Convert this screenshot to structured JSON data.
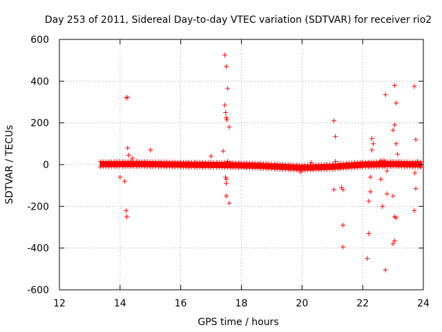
{
  "chart_data": {
    "type": "scatter",
    "title": "Day 253 of 2011, Sidereal Day-to-day VTEC variation (SDTVAR) for receiver rio2",
    "xlabel": "GPS time / hours",
    "ylabel": "SDTVAR / TECUs",
    "xlim": [
      12,
      24
    ],
    "ylim": [
      -600,
      600
    ],
    "xticks": [
      12,
      14,
      16,
      18,
      20,
      22,
      24
    ],
    "yticks": [
      -600,
      -400,
      -200,
      0,
      200,
      400,
      600
    ],
    "grid": true,
    "marker": "+",
    "series": [
      {
        "name": "SDTVAR",
        "color": "#ff0000",
        "band": {
          "x_start": 13.35,
          "x_end": 23.95,
          "center": [
            [
              13.35,
              2
            ],
            [
              14.5,
              3
            ],
            [
              16,
              0
            ],
            [
              17.5,
              -2
            ],
            [
              18.5,
              -5
            ],
            [
              20,
              -15
            ],
            [
              21,
              -10
            ],
            [
              22,
              0
            ],
            [
              23,
              3
            ],
            [
              23.95,
              0
            ]
          ],
          "half_width": 8
        },
        "points": [
          [
            14.0,
            -60
          ],
          [
            14.15,
            -80
          ],
          [
            14.2,
            320
          ],
          [
            14.25,
            322
          ],
          [
            14.2,
            -220
          ],
          [
            14.22,
            -250
          ],
          [
            14.25,
            80
          ],
          [
            14.28,
            45
          ],
          [
            14.4,
            30
          ],
          [
            15.0,
            70
          ],
          [
            14.8,
            10
          ],
          [
            17.0,
            40
          ],
          [
            17.4,
            65
          ],
          [
            17.45,
            525
          ],
          [
            17.5,
            470
          ],
          [
            17.55,
            365
          ],
          [
            17.45,
            285
          ],
          [
            17.48,
            250
          ],
          [
            17.5,
            225
          ],
          [
            17.52,
            215
          ],
          [
            17.6,
            180
          ],
          [
            17.48,
            -60
          ],
          [
            17.5,
            -90
          ],
          [
            17.5,
            -150
          ],
          [
            17.6,
            -185
          ],
          [
            17.5,
            -70
          ],
          [
            17.55,
            15
          ],
          [
            20.3,
            10
          ],
          [
            19.95,
            -35
          ],
          [
            21.05,
            210
          ],
          [
            21.1,
            135
          ],
          [
            21.1,
            15
          ],
          [
            21.05,
            -120
          ],
          [
            21.3,
            -110
          ],
          [
            21.35,
            -120
          ],
          [
            21.35,
            -290
          ],
          [
            21.35,
            -395
          ],
          [
            22.2,
            -330
          ],
          [
            22.15,
            -450
          ],
          [
            22.2,
            -175
          ],
          [
            22.25,
            -130
          ],
          [
            22.25,
            -60
          ],
          [
            22.3,
            125
          ],
          [
            22.3,
            70
          ],
          [
            22.35,
            100
          ],
          [
            22.6,
            20
          ],
          [
            22.65,
            -200
          ],
          [
            22.6,
            -70
          ],
          [
            22.7,
            20
          ],
          [
            22.75,
            335
          ],
          [
            22.75,
            -505
          ],
          [
            22.8,
            -140
          ],
          [
            22.8,
            -30
          ],
          [
            23.05,
            380
          ],
          [
            23.1,
            295
          ],
          [
            23.05,
            190
          ],
          [
            23.0,
            165
          ],
          [
            23.1,
            100
          ],
          [
            23.15,
            50
          ],
          [
            23.0,
            -150
          ],
          [
            23.05,
            -250
          ],
          [
            23.1,
            -255
          ],
          [
            23.05,
            -365
          ],
          [
            23.0,
            -380
          ],
          [
            23.7,
            375
          ],
          [
            23.75,
            120
          ],
          [
            23.72,
            -40
          ],
          [
            23.75,
            -115
          ],
          [
            23.7,
            -220
          ],
          [
            23.8,
            15
          ]
        ]
      }
    ]
  }
}
